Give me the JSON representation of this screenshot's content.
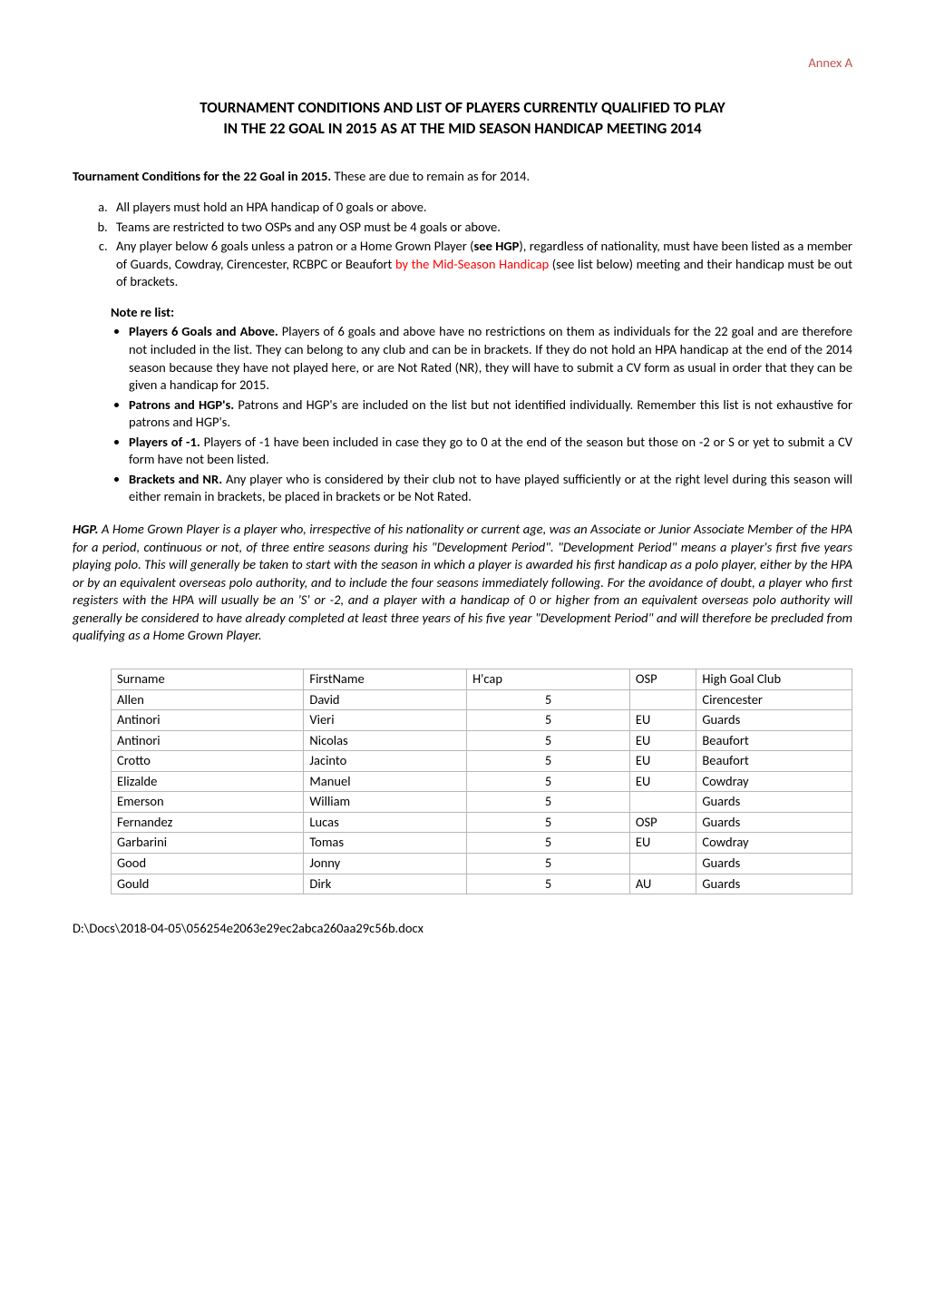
{
  "annex": "Annex A",
  "title_line1": "TOURNAMENT CONDITIONS AND LIST OF PLAYERS CURRENTLY QUALIFIED TO PLAY",
  "title_line2": "IN THE 22 GOAL IN 2015 AS AT THE MID SEASON HANDICAP MEETING 2014",
  "conditions_intro_bold": "Tournament Conditions for the 22 Goal in 2015.",
  "conditions_intro_rest": " These are due to remain as for 2014.",
  "cond_a": "All players must hold an HPA handicap of 0 goals or above.",
  "cond_b": "Teams are restricted to two OSPs and any OSP must be 4 goals or above.",
  "cond_c_part1": "Any player below 6 goals unless a patron or a Home Grown Player (",
  "cond_c_bold": "see HGP",
  "cond_c_part2": "), regardless of nationality, must have been listed as a member of Guards, Cowdray, Cirencester, RCBPC or Beaufort ",
  "cond_c_red": "by the Mid-Season Handicap",
  "cond_c_part3": " (see list below) meeting and their handicap must be out of brackets.",
  "note_head": "Note re list:",
  "note1_bold": "Players 6 Goals and Above.",
  "note1_text": " Players of 6 goals and above have no restrictions on them as individuals for the 22 goal and are therefore not included in the list.  They can belong to any club and can be in brackets.  If they do not hold an HPA handicap at the end of the 2014 season because they have not played here, or are Not Rated (NR), they will have to submit a CV form as usual in order that they can be given a handicap for 2015.",
  "note2_bold": "Patrons and HGP's.",
  "note2_text": " Patrons and HGP's are included on the list but not identified individually. Remember this list is not exhaustive for patrons and HGP's.",
  "note3_bold": "Players of -1.",
  "note3_text": " Players of -1 have been included in case they go to 0 at the end of the season but those on   -2 or S or yet to submit a CV form have not been listed.",
  "note4_bold": "Brackets and NR.",
  "note4_text": "  Any player who is considered by their club not to have played sufficiently or at the right level during this season will either remain in brackets, be placed in brackets or be Not Rated.",
  "hgp_bold": "HGP.",
  "hgp_text": "  A Home Grown Player is a player who, irrespective of his nationality or current age, was an Associate or Junior Associate Member of the HPA for a period, continuous or not, of three entire seasons during his \"Development Period\".  \"Development Period\" means a player's first five years playing polo. This will generally be taken to start with the season in which a player is awarded his first handicap as a polo player, either by the HPA or by an equivalent overseas polo authority, and to include the four seasons immediately following.  For the avoidance of doubt, a player who first registers with the HPA will usually be an 'S' or -2, and a player with a handicap of 0 or higher from an equivalent overseas polo authority will generally be considered to have already completed at least three years of his five year \"Development Period\" and will therefore be precluded from qualifying as a Home Grown Player.",
  "table": {
    "border_color": "#b8b8b8",
    "columns": [
      "Surname",
      "FirstName",
      "H'cap",
      "OSP",
      "High Goal Club"
    ],
    "col_widths_pct": [
      26,
      22,
      22,
      9,
      21
    ],
    "center_cols": [
      2
    ],
    "rows": [
      [
        "Allen",
        "David",
        "5",
        "",
        "Cirencester"
      ],
      [
        "Antinori",
        "Vieri",
        "5",
        "EU",
        "Guards"
      ],
      [
        "Antinori",
        "Nicolas",
        "5",
        "EU",
        "Beaufort"
      ],
      [
        "Crotto",
        "Jacinto",
        "5",
        "EU",
        "Beaufort"
      ],
      [
        "Elizalde",
        "Manuel",
        "5",
        "EU",
        "Cowdray"
      ],
      [
        "Emerson",
        "William",
        "5",
        "",
        "Guards"
      ],
      [
        "Fernandez",
        "Lucas",
        "5",
        "OSP",
        "Guards"
      ],
      [
        "Garbarini",
        "Tomas",
        "5",
        "EU",
        "Cowdray"
      ],
      [
        "Good",
        "Jonny",
        "5",
        "",
        "Guards"
      ],
      [
        "Gould",
        "Dirk",
        "5",
        "AU",
        "Guards"
      ]
    ]
  },
  "footer": "D:\\Docs\\2018-04-05\\056254e2063e29ec2abca260aa29c56b.docx"
}
